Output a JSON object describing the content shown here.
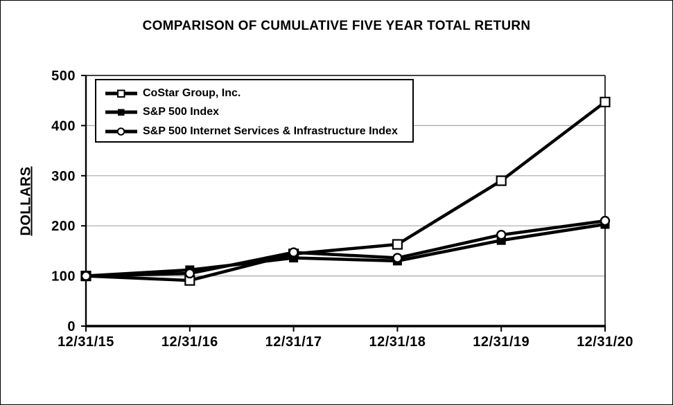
{
  "title": "COMPARISON OF CUMULATIVE FIVE YEAR TOTAL RETURN",
  "y_axis_title": "DOLLARS",
  "chart_data": {
    "type": "line",
    "title": "COMPARISON OF CUMULATIVE FIVE YEAR TOTAL RETURN",
    "ylabel": "DOLLARS",
    "xlabel": "",
    "categories": [
      "12/31/15",
      "12/31/16",
      "12/31/17",
      "12/31/18",
      "12/31/19",
      "12/31/20"
    ],
    "series": [
      {
        "name": "CoStar Group, Inc.",
        "marker": "open-square",
        "values": [
          100,
          91,
          144,
          163,
          290,
          447
        ]
      },
      {
        "name": "S&P 500 Index",
        "marker": "filled-square",
        "values": [
          100,
          112,
          136,
          130,
          171,
          203
        ]
      },
      {
        "name": "S&P 500 Internet Services & Infrastructure Index",
        "marker": "open-circle",
        "values": [
          100,
          105,
          147,
          136,
          182,
          210
        ]
      }
    ],
    "ylim": [
      0,
      500
    ],
    "y_ticks": [
      0,
      100,
      200,
      300,
      400,
      500
    ],
    "grid": "horizontal-gridlines",
    "legend_position": "top-left-inside",
    "colors": {
      "series_line": "#000000",
      "grid_line": "#a6a6a6",
      "background": "#ffffff",
      "frame": "#000000"
    }
  }
}
